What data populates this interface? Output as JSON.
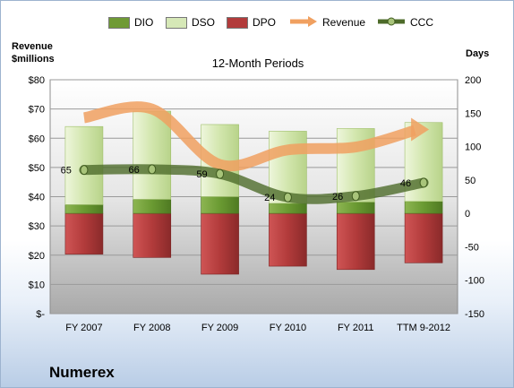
{
  "page": {
    "company": "Numerex"
  },
  "legend": [
    {
      "label": "DIO",
      "color": "#6f9a35",
      "kind": "bar"
    },
    {
      "label": "DSO",
      "color": "#d6e8b7",
      "kind": "bar"
    },
    {
      "label": "DPO",
      "color": "#b23b3b",
      "kind": "bar"
    },
    {
      "label": "Revenue",
      "color": "#f0a060",
      "kind": "arrow"
    },
    {
      "label": "CCC",
      "color": "#4d6b2a",
      "kind": "line"
    }
  ],
  "chart_data": {
    "type": "bar",
    "title": "12-Month Periods",
    "categories": [
      "FY 2007",
      "FY 2008",
      "FY 2009",
      "FY 2010",
      "FY 2011",
      "TTM 9-2012"
    ],
    "left_axis": {
      "label_line1": "Revenue",
      "label_line2": "$millions",
      "min": 0,
      "max": 80,
      "step": 10,
      "tick_labels": [
        "$-",
        "$10",
        "$20",
        "$30",
        "$40",
        "$50",
        "$60",
        "$70",
        "$80"
      ]
    },
    "right_axis": {
      "label": "Days",
      "min": -150,
      "max": 200,
      "step": 50,
      "tick_labels": [
        "-150",
        "-100",
        "-50",
        "0",
        "50",
        "100",
        "150",
        "200"
      ]
    },
    "grid": true,
    "legend_position": "top",
    "series": [
      {
        "name": "DIO",
        "axis": "right",
        "values": [
          13,
          21,
          25,
          15,
          17,
          18
        ]
      },
      {
        "name": "DSO",
        "axis": "right",
        "values": [
          117,
          132,
          108,
          108,
          110,
          118
        ]
      },
      {
        "name": "DPO",
        "axis": "right",
        "values": [
          -61,
          -66,
          -91,
          -79,
          -84,
          -74
        ]
      },
      {
        "name": "Revenue",
        "axis": "left",
        "values": [
          67,
          70,
          51,
          56,
          57,
          63
        ]
      },
      {
        "name": "CCC",
        "axis": "right",
        "values": [
          65,
          66,
          59,
          24,
          26,
          46
        ]
      }
    ],
    "ccc_labels": [
      "65",
      "66",
      "59",
      "24",
      "26",
      "46"
    ]
  }
}
